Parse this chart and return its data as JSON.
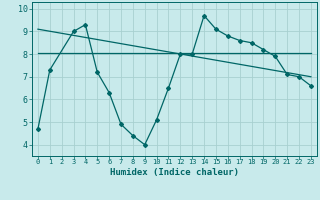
{
  "xlabel": "Humidex (Indice chaleur)",
  "bg_color": "#c8eaeb",
  "grid_color": "#a8d0d0",
  "line_color": "#006666",
  "xlim": [
    -0.5,
    23.5
  ],
  "ylim": [
    3.5,
    10.3
  ],
  "xticks": [
    0,
    1,
    2,
    3,
    4,
    5,
    6,
    7,
    8,
    9,
    10,
    11,
    12,
    13,
    14,
    15,
    16,
    17,
    18,
    19,
    20,
    21,
    22,
    23
  ],
  "yticks": [
    4,
    5,
    6,
    7,
    8,
    9,
    10
  ],
  "series1_x": [
    0,
    1,
    3,
    4,
    5,
    6,
    7,
    8,
    9,
    10,
    11,
    12,
    13,
    14,
    15,
    16,
    17,
    18,
    19,
    20,
    21,
    22,
    23
  ],
  "series1_y": [
    4.7,
    7.3,
    9.0,
    9.3,
    7.2,
    6.3,
    4.9,
    4.4,
    4.0,
    5.1,
    6.5,
    8.0,
    8.0,
    9.7,
    9.1,
    8.8,
    8.6,
    8.5,
    8.2,
    7.9,
    7.1,
    7.0,
    6.6
  ],
  "series2_x": [
    0,
    23
  ],
  "series2_y": [
    8.05,
    8.05
  ],
  "series3_x": [
    0,
    23
  ],
  "series3_y": [
    9.1,
    7.0
  ],
  "marker": "D",
  "marker_size": 2.0,
  "line_width": 0.9
}
